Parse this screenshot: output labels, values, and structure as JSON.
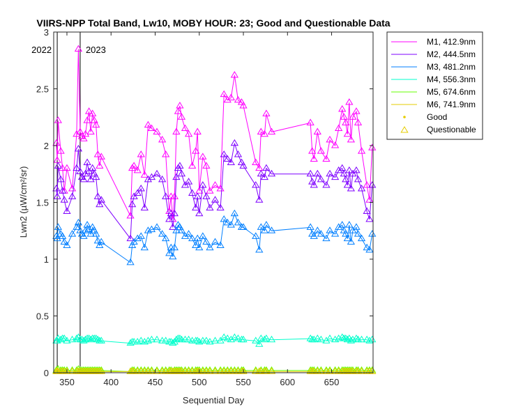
{
  "chart_data": {
    "type": "line",
    "title": "VIIRS-NPP Total Band, Lw10, MOBY HOUR: 23;  Good and Questionable Data",
    "xlabel": "Sequential Day",
    "ylabel": "Lwn2 (µW/cm²/sr)",
    "xlim": [
      335,
      697
    ],
    "ylim": [
      0,
      3
    ],
    "xticks": [
      350,
      400,
      450,
      500,
      550,
      600,
      650
    ],
    "yticks": [
      0,
      0.5,
      1,
      1.5,
      2,
      2.5,
      3
    ],
    "xtick_labels": [
      "350",
      "400",
      "450",
      "500",
      "550",
      "600",
      "650"
    ],
    "ytick_labels": [
      "0",
      "0.5",
      "1",
      "1.5",
      "2",
      "2.5",
      "3"
    ],
    "grid": false,
    "legend_position": "outside-top-right",
    "year_markers": [
      {
        "x": 339,
        "label": "2022",
        "label_side": "left"
      },
      {
        "x": 365,
        "label": "2023",
        "label_side": "right"
      }
    ],
    "x": [
      338,
      339,
      340,
      343,
      345,
      347,
      350,
      356,
      361,
      363,
      365,
      367,
      369,
      371,
      373,
      375,
      377,
      379,
      381,
      383,
      385,
      387,
      389,
      422,
      424,
      426,
      430,
      434,
      438,
      442,
      446,
      452,
      458,
      462,
      466,
      468,
      470,
      472,
      474,
      476,
      478,
      480,
      484,
      488,
      492,
      496,
      498,
      500,
      504,
      508,
      512,
      518,
      524,
      528,
      532,
      536,
      540,
      544,
      548,
      550,
      564,
      568,
      570,
      574,
      576,
      582,
      626,
      628,
      630,
      634,
      638,
      644,
      648,
      654,
      658,
      662,
      664,
      666,
      668,
      670,
      672,
      674,
      678,
      680,
      684,
      690,
      693,
      696
    ],
    "series": [
      {
        "name": "M1, 412.9nm",
        "color": "#ff00ff",
        "values": [
          2.02,
          1.87,
          2.22,
          1.95,
          1.8,
          1.6,
          1.8,
          1.62,
          2.1,
          2.85,
          2.12,
          2.08,
          2.06,
          2.1,
          2.22,
          2.3,
          2.12,
          2.28,
          2.22,
          2.18,
          1.92,
          1.82,
          1.9,
          1.38,
          1.8,
          1.82,
          1.78,
          1.92,
          1.74,
          2.18,
          2.15,
          2.12,
          2.05,
          1.92,
          1.42,
          1.55,
          1.35,
          1.55,
          2.12,
          2.3,
          2.35,
          2.25,
          2.15,
          2.1,
          1.82,
          1.95,
          2.12,
          1.6,
          1.9,
          1.82,
          1.6,
          1.65,
          1.62,
          2.45,
          2.4,
          2.42,
          2.62,
          2.4,
          2.38,
          2.35,
          1.85,
          1.8,
          2.12,
          2.1,
          2.28,
          2.12,
          2.2,
          1.95,
          1.88,
          2.12,
          1.95,
          1.88,
          2.05,
          2.0,
          2.15,
          2.32,
          2.25,
          2.2,
          2.1,
          2.38,
          2.05,
          2.25,
          2.3,
          2.2,
          1.95,
          1.65,
          1.52,
          1.98
        ]
      },
      {
        "name": "M2, 444.5nm",
        "color": "#7f00ff",
        "values": [
          1.62,
          1.55,
          1.82,
          1.7,
          1.6,
          1.52,
          1.42,
          1.55,
          1.8,
          1.97,
          1.77,
          1.72,
          1.7,
          1.75,
          1.85,
          1.77,
          1.7,
          1.8,
          1.75,
          1.72,
          1.55,
          1.48,
          1.52,
          1.18,
          1.48,
          1.55,
          1.58,
          1.62,
          1.45,
          1.7,
          1.72,
          1.75,
          1.7,
          1.55,
          1.35,
          1.4,
          1.28,
          1.4,
          1.72,
          1.8,
          1.82,
          1.75,
          1.65,
          1.68,
          1.58,
          1.45,
          1.55,
          1.4,
          1.65,
          1.55,
          1.45,
          1.52,
          1.45,
          1.92,
          1.88,
          1.85,
          2.02,
          1.92,
          1.85,
          1.82,
          1.65,
          1.52,
          1.75,
          1.72,
          1.8,
          1.75,
          1.75,
          1.68,
          1.65,
          1.75,
          1.7,
          1.65,
          1.75,
          1.72,
          1.78,
          1.8,
          1.75,
          1.7,
          1.65,
          1.78,
          1.62,
          1.75,
          1.78,
          1.7,
          1.62,
          1.42,
          1.35,
          1.65
        ]
      },
      {
        "name": "M3, 481.2nm",
        "color": "#007fff",
        "values": [
          1.2,
          1.18,
          1.28,
          1.22,
          1.2,
          1.15,
          1.12,
          1.22,
          1.28,
          1.32,
          1.25,
          1.22,
          1.2,
          1.25,
          1.3,
          1.26,
          1.22,
          1.28,
          1.25,
          1.22,
          1.16,
          1.12,
          1.15,
          0.97,
          1.12,
          1.15,
          1.18,
          1.2,
          1.1,
          1.25,
          1.26,
          1.28,
          1.22,
          1.18,
          1.05,
          1.1,
          1.02,
          1.1,
          1.25,
          1.3,
          1.28,
          1.25,
          1.2,
          1.22,
          1.18,
          1.12,
          1.18,
          1.1,
          1.2,
          1.15,
          1.1,
          1.15,
          1.12,
          1.35,
          1.32,
          1.3,
          1.4,
          1.32,
          1.28,
          1.28,
          1.2,
          1.08,
          1.28,
          1.25,
          1.3,
          1.25,
          1.28,
          1.22,
          1.2,
          1.25,
          1.22,
          1.18,
          1.25,
          1.22,
          1.28,
          1.3,
          1.25,
          1.22,
          1.18,
          1.3,
          1.15,
          1.25,
          1.28,
          1.22,
          1.18,
          1.1,
          1.08,
          1.22
        ]
      },
      {
        "name": "M4, 556.3nm",
        "color": "#00ffcc",
        "values": [
          0.28,
          0.28,
          0.3,
          0.29,
          0.3,
          0.3,
          0.28,
          0.29,
          0.3,
          0.31,
          0.29,
          0.29,
          0.28,
          0.29,
          0.3,
          0.3,
          0.29,
          0.3,
          0.3,
          0.3,
          0.29,
          0.28,
          0.28,
          0.26,
          0.27,
          0.27,
          0.27,
          0.28,
          0.27,
          0.28,
          0.29,
          0.29,
          0.28,
          0.28,
          0.27,
          0.27,
          0.26,
          0.27,
          0.29,
          0.3,
          0.3,
          0.29,
          0.29,
          0.29,
          0.28,
          0.28,
          0.28,
          0.27,
          0.28,
          0.28,
          0.27,
          0.28,
          0.28,
          0.31,
          0.3,
          0.29,
          0.31,
          0.3,
          0.29,
          0.29,
          0.28,
          0.25,
          0.3,
          0.29,
          0.3,
          0.29,
          0.3,
          0.29,
          0.29,
          0.3,
          0.29,
          0.28,
          0.3,
          0.29,
          0.3,
          0.31,
          0.3,
          0.3,
          0.29,
          0.3,
          0.28,
          0.29,
          0.3,
          0.29,
          0.29,
          0.29,
          0.28,
          0.29
        ]
      },
      {
        "name": "M5, 674.6nm",
        "color": "#66ff00",
        "values": [
          0.02,
          0.02,
          0.03,
          0.02,
          0.02,
          0.02,
          0.02,
          0.02,
          0.02,
          0.03,
          0.02,
          0.02,
          0.02,
          0.02,
          0.02,
          0.02,
          0.02,
          0.02,
          0.02,
          0.02,
          0.02,
          0.02,
          0.02,
          0.01,
          0.02,
          0.02,
          0.02,
          0.02,
          0.02,
          0.02,
          0.02,
          0.02,
          0.02,
          0.02,
          0.02,
          0.02,
          0.01,
          0.02,
          0.02,
          0.02,
          0.02,
          0.02,
          0.02,
          0.02,
          0.02,
          0.02,
          0.02,
          0.02,
          0.02,
          0.02,
          0.02,
          0.02,
          0.02,
          0.02,
          0.02,
          0.02,
          0.02,
          0.02,
          0.02,
          0.02,
          0.02,
          0.01,
          0.02,
          0.02,
          0.02,
          0.02,
          0.02,
          0.02,
          0.02,
          0.02,
          0.02,
          0.02,
          0.02,
          0.02,
          0.02,
          0.02,
          0.02,
          0.02,
          0.02,
          0.02,
          0.02,
          0.02,
          0.02,
          0.02,
          0.02,
          0.02,
          0.02,
          0.02
        ]
      },
      {
        "name": "M6, 741.9nm",
        "color": "#e6cc00",
        "values": [
          0.01,
          0.01,
          0.01,
          0.01,
          0.01,
          0.01,
          0.01,
          0.01,
          0.01,
          0.01,
          0.01,
          0.01,
          0.01,
          0.01,
          0.01,
          0.01,
          0.01,
          0.01,
          0.01,
          0.01,
          0.01,
          0.01,
          0.01,
          0.01,
          0.01,
          0.01,
          0.01,
          0.01,
          0.01,
          0.01,
          0.01,
          0.01,
          0.01,
          0.01,
          0.01,
          0.01,
          0.01,
          0.01,
          0.01,
          0.01,
          0.01,
          0.01,
          0.01,
          0.01,
          0.01,
          0.01,
          0.01,
          0.01,
          0.01,
          0.01,
          0.01,
          0.01,
          0.01,
          0.01,
          0.01,
          0.01,
          0.01,
          0.01,
          0.01,
          0.01,
          0.01,
          0.01,
          0.01,
          0.01,
          0.01,
          0.01,
          0.01,
          0.01,
          0.01,
          0.01,
          0.01,
          0.01,
          0.01,
          0.01,
          0.01,
          0.01,
          0.01,
          0.01,
          0.01,
          0.01,
          0.01,
          0.01,
          0.01,
          0.01,
          0.01,
          0.01,
          0.01,
          0.01
        ]
      }
    ],
    "legend": {
      "entries": [
        {
          "label": "M1, 412.9nm",
          "kind": "line",
          "color": "#ff00ff"
        },
        {
          "label": "M2, 444.5nm",
          "kind": "line",
          "color": "#7f00ff"
        },
        {
          "label": "M3, 481.2nm",
          "kind": "line",
          "color": "#007fff"
        },
        {
          "label": "M4, 556.3nm",
          "kind": "line",
          "color": "#00ffcc"
        },
        {
          "label": "M5, 674.6nm",
          "kind": "line",
          "color": "#66ff00"
        },
        {
          "label": "M6, 741.9nm",
          "kind": "line",
          "color": "#e6cc00"
        },
        {
          "label": "Good",
          "kind": "dot",
          "color": "#e6cc00"
        },
        {
          "label": "Questionable",
          "kind": "triangle",
          "color": "#e6cc00"
        }
      ]
    }
  }
}
